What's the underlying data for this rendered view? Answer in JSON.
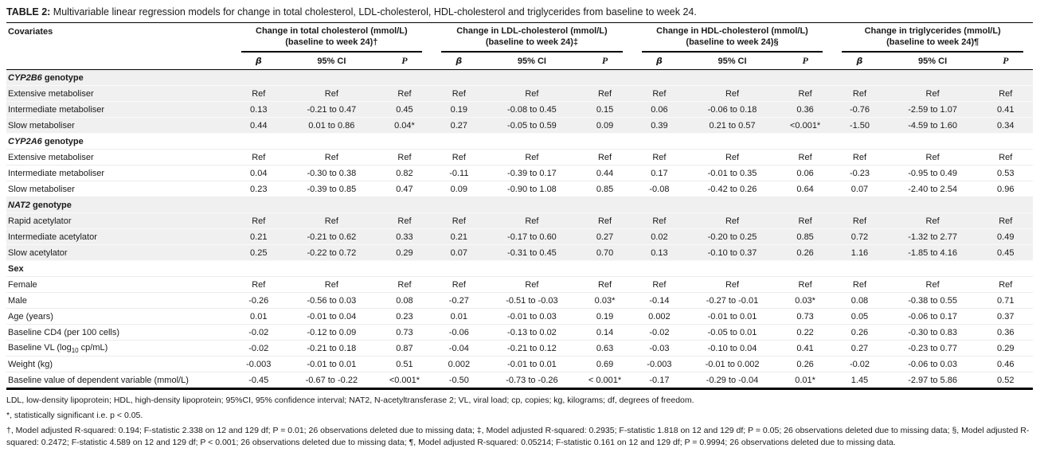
{
  "title": {
    "prefix": "TABLE 2:",
    "text": " Multivariable linear regression models for change in total cholesterol, LDL-cholesterol, HDL-cholesterol and triglycerides from baseline to week 24."
  },
  "colors": {
    "shaded_row": "#f0f0f0",
    "rule": "#000000",
    "text": "#1a1a1a"
  },
  "header": {
    "covariates_label": "Covariates",
    "groups": [
      {
        "line1": "Change in total cholesterol (mmol/L)",
        "line2": "(baseline to week 24)†"
      },
      {
        "line1": "Change in LDL-cholesterol (mmol/L)",
        "line2": "(baseline to week 24)‡"
      },
      {
        "line1": "Change in HDL-cholesterol (mmol/L)",
        "line2": "(baseline to week 24)§"
      },
      {
        "line1": "Change in triglycerides (mmol/L)",
        "line2": "(baseline to week 24)¶"
      }
    ],
    "subcolumns": [
      "β",
      "95% CI",
      "P"
    ]
  },
  "sections": [
    {
      "header": {
        "italic": "CYP2B6",
        "rest": " genotype"
      },
      "shaded": true,
      "rows": [
        {
          "label": "Extensive metaboliser",
          "cells": [
            "Ref",
            "Ref",
            "Ref",
            "Ref",
            "Ref",
            "Ref",
            "Ref",
            "Ref",
            "Ref",
            "Ref",
            "Ref",
            "Ref"
          ]
        },
        {
          "label": "Intermediate metaboliser",
          "cells": [
            "0.13",
            "-0.21 to 0.47",
            "0.45",
            "0.19",
            "-0.08 to 0.45",
            "0.15",
            "0.06",
            "-0.06 to 0.18",
            "0.36",
            "-0.76",
            "-2.59 to 1.07",
            "0.41"
          ]
        },
        {
          "label": "Slow metaboliser",
          "cells": [
            "0.44",
            "0.01 to 0.86",
            "0.04*",
            "0.27",
            "-0.05 to 0.59",
            "0.09",
            "0.39",
            "0.21 to 0.57",
            "<0.001*",
            "-1.50",
            "-4.59 to 1.60",
            "0.34"
          ]
        }
      ]
    },
    {
      "header": {
        "italic": "CYP2A6",
        "rest": " genotype"
      },
      "shaded": false,
      "rows": [
        {
          "label": "Extensive metaboliser",
          "cells": [
            "Ref",
            "Ref",
            "Ref",
            "Ref",
            "Ref",
            "Ref",
            "Ref",
            "Ref",
            "Ref",
            "Ref",
            "Ref",
            "Ref"
          ]
        },
        {
          "label": "Intermediate metaboliser",
          "cells": [
            "0.04",
            "-0.30 to 0.38",
            "0.82",
            "-0.11",
            "-0.39 to 0.17",
            "0.44",
            "0.17",
            "-0.01 to 0.35",
            "0.06",
            "-0.23",
            "-0.95 to 0.49",
            "0.53"
          ]
        },
        {
          "label": "Slow metaboliser",
          "cells": [
            "0.23",
            "-0.39 to 0.85",
            "0.47",
            "0.09",
            "-0.90 to 1.08",
            "0.85",
            "-0.08",
            "-0.42 to 0.26",
            "0.64",
            "0.07",
            "-2.40 to 2.54",
            "0.96"
          ]
        }
      ]
    },
    {
      "header": {
        "italic": "NAT2",
        "rest": " genotype"
      },
      "shaded": true,
      "rows": [
        {
          "label": "Rapid acetylator",
          "cells": [
            "Ref",
            "Ref",
            "Ref",
            "Ref",
            "Ref",
            "Ref",
            "Ref",
            "Ref",
            "Ref",
            "Ref",
            "Ref",
            "Ref"
          ]
        },
        {
          "label": "Intermediate acetylator",
          "cells": [
            "0.21",
            "-0.21 to 0.62",
            "0.33",
            "0.21",
            "-0.17 to 0.60",
            "0.27",
            "0.02",
            "-0.20 to 0.25",
            "0.85",
            "0.72",
            "-1.32 to 2.77",
            "0.49"
          ]
        },
        {
          "label": "Slow acetylator",
          "cells": [
            "0.25",
            "-0.22 to 0.72",
            "0.29",
            "0.07",
            "-0.31 to 0.45",
            "0.70",
            "0.13",
            "-0.10 to 0.37",
            "0.26",
            "1.16",
            "-1.85 to 4.16",
            "0.45"
          ]
        }
      ]
    },
    {
      "header": {
        "italic": "",
        "rest": "Sex"
      },
      "shaded": false,
      "rows": [
        {
          "label": "Female",
          "cells": [
            "Ref",
            "Ref",
            "Ref",
            "Ref",
            "Ref",
            "Ref",
            "Ref",
            "Ref",
            "Ref",
            "Ref",
            "Ref",
            "Ref"
          ]
        },
        {
          "label": "Male",
          "cells": [
            "-0.26",
            "-0.56 to 0.03",
            "0.08",
            "-0.27",
            "-0.51 to -0.03",
            "0.03*",
            "-0.14",
            "-0.27 to -0.01",
            "0.03*",
            "0.08",
            "-0.38 to 0.55",
            "0.71"
          ]
        }
      ]
    },
    {
      "header": null,
      "shaded": false,
      "rows": [
        {
          "label": "Age (years)",
          "cells": [
            "0.01",
            "-0.01 to 0.04",
            "0.23",
            "0.01",
            "-0.01 to 0.03",
            "0.19",
            "0.002",
            "-0.01 to 0.01",
            "0.73",
            "0.05",
            "-0.06 to 0.17",
            "0.37"
          ]
        },
        {
          "label": "Baseline CD4 (per 100 cells)",
          "cells": [
            "-0.02",
            "-0.12 to 0.09",
            "0.73",
            "-0.06",
            "-0.13 to 0.02",
            "0.14",
            "-0.02",
            "-0.05 to 0.01",
            "0.22",
            "0.26",
            "-0.30 to 0.83",
            "0.36"
          ]
        },
        {
          "label_parts": [
            "Baseline VL (log",
            "10",
            " cp/mL)"
          ],
          "cells": [
            "-0.02",
            "-0.21 to 0.18",
            "0.87",
            "-0.04",
            "-0.21 to 0.12",
            "0.63",
            "-0.03",
            "-0.10 to 0.04",
            "0.41",
            "0.27",
            "-0.23 to 0.77",
            "0.29"
          ]
        },
        {
          "label": "Weight (kg)",
          "cells": [
            "-0.003",
            "-0.01 to 0.01",
            "0.51",
            "0.002",
            "-0.01 to 0.01",
            "0.69",
            "-0.003",
            "-0.01 to 0.002",
            "0.26",
            "-0.02",
            "-0.06 to 0.03",
            "0.46"
          ]
        },
        {
          "label": "Baseline value of dependent variable (mmol/L)",
          "cells": [
            "-0.45",
            "-0.67 to -0.22",
            "<0.001*",
            "-0.50",
            "-0.73 to -0.26",
            "< 0.001*",
            "-0.17",
            "-0.29 to -0.04",
            "0.01*",
            "1.45",
            "-2.97 to 5.86",
            "0.52"
          ]
        }
      ]
    }
  ],
  "footnotes": {
    "abbreviations": "LDL, low-density lipoprotein; HDL, high-density lipoprotein; 95%CI, 95% confidence interval; NAT2, N-acetyltransferase 2; VL, viral load; cp, copies; kg, kilograms; df, degrees of freedom.",
    "significance": "*, statistically significant i.e. p < 0.05.",
    "models": "†, Model adjusted R-squared: 0.194; F-statistic 2.338 on 12 and 129 df; P = 0.01; 26 observations deleted due to missing data; ‡, Model adjusted R-squared: 0.2935; F-statistic 1.818 on 12 and 129 df; P = 0.05; 26 observations deleted due to missing data; §, Model adjusted R-squared: 0.2472; F-statistic 4.589 on 12 and 129 df; P < 0.001; 26 observations deleted due to missing data; ¶, Model adjusted R-squared: 0.05214; F-statistic 0.161 on 12 and 129 df; P = 0.9994; 26 observations deleted due to missing data."
  }
}
